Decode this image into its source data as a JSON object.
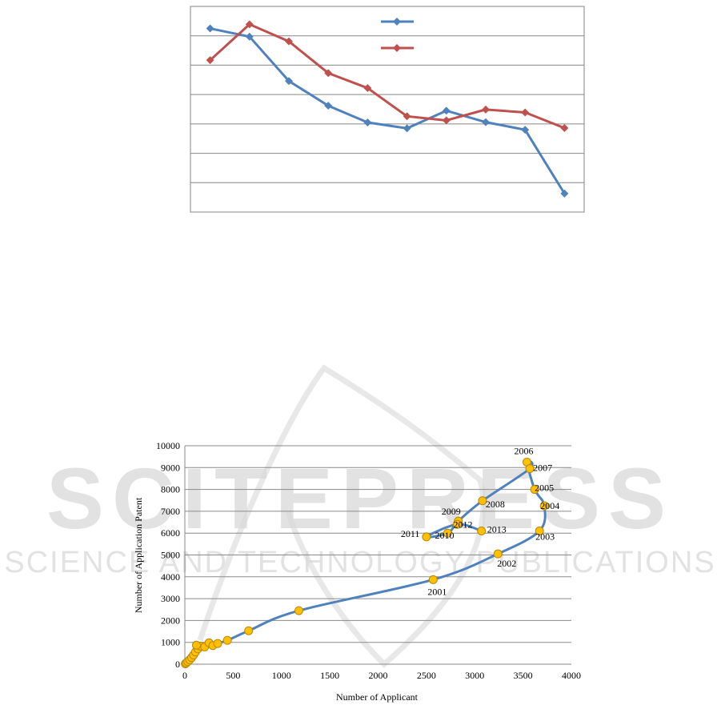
{
  "charts": [
    {
      "id": "top",
      "type": "line",
      "x_count": 10,
      "ylim": [
        0,
        7
      ],
      "grid": "horizontal",
      "legend": "top-center",
      "series": [
        {
          "color": "#4F81BD",
          "values": [
            6.25,
            5.97,
            4.46,
            3.62,
            3.05,
            2.85,
            3.45,
            3.06,
            2.8,
            0.63
          ]
        },
        {
          "color": "#C0504D",
          "values": [
            5.17,
            6.39,
            5.81,
            4.73,
            4.22,
            3.26,
            3.12,
            3.49,
            3.39,
            2.86
          ]
        }
      ]
    },
    {
      "id": "bottom",
      "type": "scatter",
      "xlabel": "Number of Applicant",
      "ylabel": "Number of Application Patent",
      "xlim": [
        0,
        4000
      ],
      "ylim": [
        0,
        10000
      ],
      "xticks": [
        0,
        500,
        1000,
        1500,
        2000,
        2500,
        3000,
        3500,
        4000
      ],
      "yticks": [
        0,
        1000,
        2000,
        3000,
        4000,
        5000,
        6000,
        7000,
        8000,
        9000,
        10000
      ],
      "line_color": "#4F81BD",
      "marker_color": "#FFC000",
      "marker_stroke": "#B8860B",
      "points": [
        {
          "x": 5,
          "y": 20,
          "label": ""
        },
        {
          "x": 15,
          "y": 60,
          "label": ""
        },
        {
          "x": 30,
          "y": 120,
          "label": ""
        },
        {
          "x": 50,
          "y": 200,
          "label": ""
        },
        {
          "x": 70,
          "y": 300,
          "label": ""
        },
        {
          "x": 90,
          "y": 420,
          "label": ""
        },
        {
          "x": 110,
          "y": 560,
          "label": ""
        },
        {
          "x": 135,
          "y": 700,
          "label": ""
        },
        {
          "x": 160,
          "y": 830,
          "label": ""
        },
        {
          "x": 120,
          "y": 870,
          "label": ""
        },
        {
          "x": 205,
          "y": 790,
          "label": ""
        },
        {
          "x": 250,
          "y": 980,
          "label": ""
        },
        {
          "x": 290,
          "y": 850,
          "label": ""
        },
        {
          "x": 340,
          "y": 950,
          "label": ""
        },
        {
          "x": 440,
          "y": 1090,
          "label": ""
        },
        {
          "x": 660,
          "y": 1530,
          "label": ""
        },
        {
          "x": 1180,
          "y": 2450,
          "label": ""
        },
        {
          "x": 2570,
          "y": 3870,
          "label": "2001"
        },
        {
          "x": 3240,
          "y": 5050,
          "label": "2002"
        },
        {
          "x": 3670,
          "y": 6100,
          "label": "2003"
        },
        {
          "x": 3720,
          "y": 7250,
          "label": "2004"
        },
        {
          "x": 3620,
          "y": 8000,
          "label": "2005"
        },
        {
          "x": 3540,
          "y": 9250,
          "label": "2006"
        },
        {
          "x": 3570,
          "y": 8950,
          "label": "2007"
        },
        {
          "x": 3080,
          "y": 7480,
          "label": "2008"
        },
        {
          "x": 2830,
          "y": 6550,
          "label": "2009"
        },
        {
          "x": 2720,
          "y": 6000,
          "label": "2010"
        },
        {
          "x": 2500,
          "y": 5830,
          "label": "2011"
        },
        {
          "x": 2820,
          "y": 6400,
          "label": "2012"
        },
        {
          "x": 3070,
          "y": 6100,
          "label": "2013"
        }
      ]
    }
  ],
  "watermark": {
    "line1": "SCITEPRESS",
    "line2": "SCIENCE AND TECHNOLOGY PUBLICATIONS"
  }
}
